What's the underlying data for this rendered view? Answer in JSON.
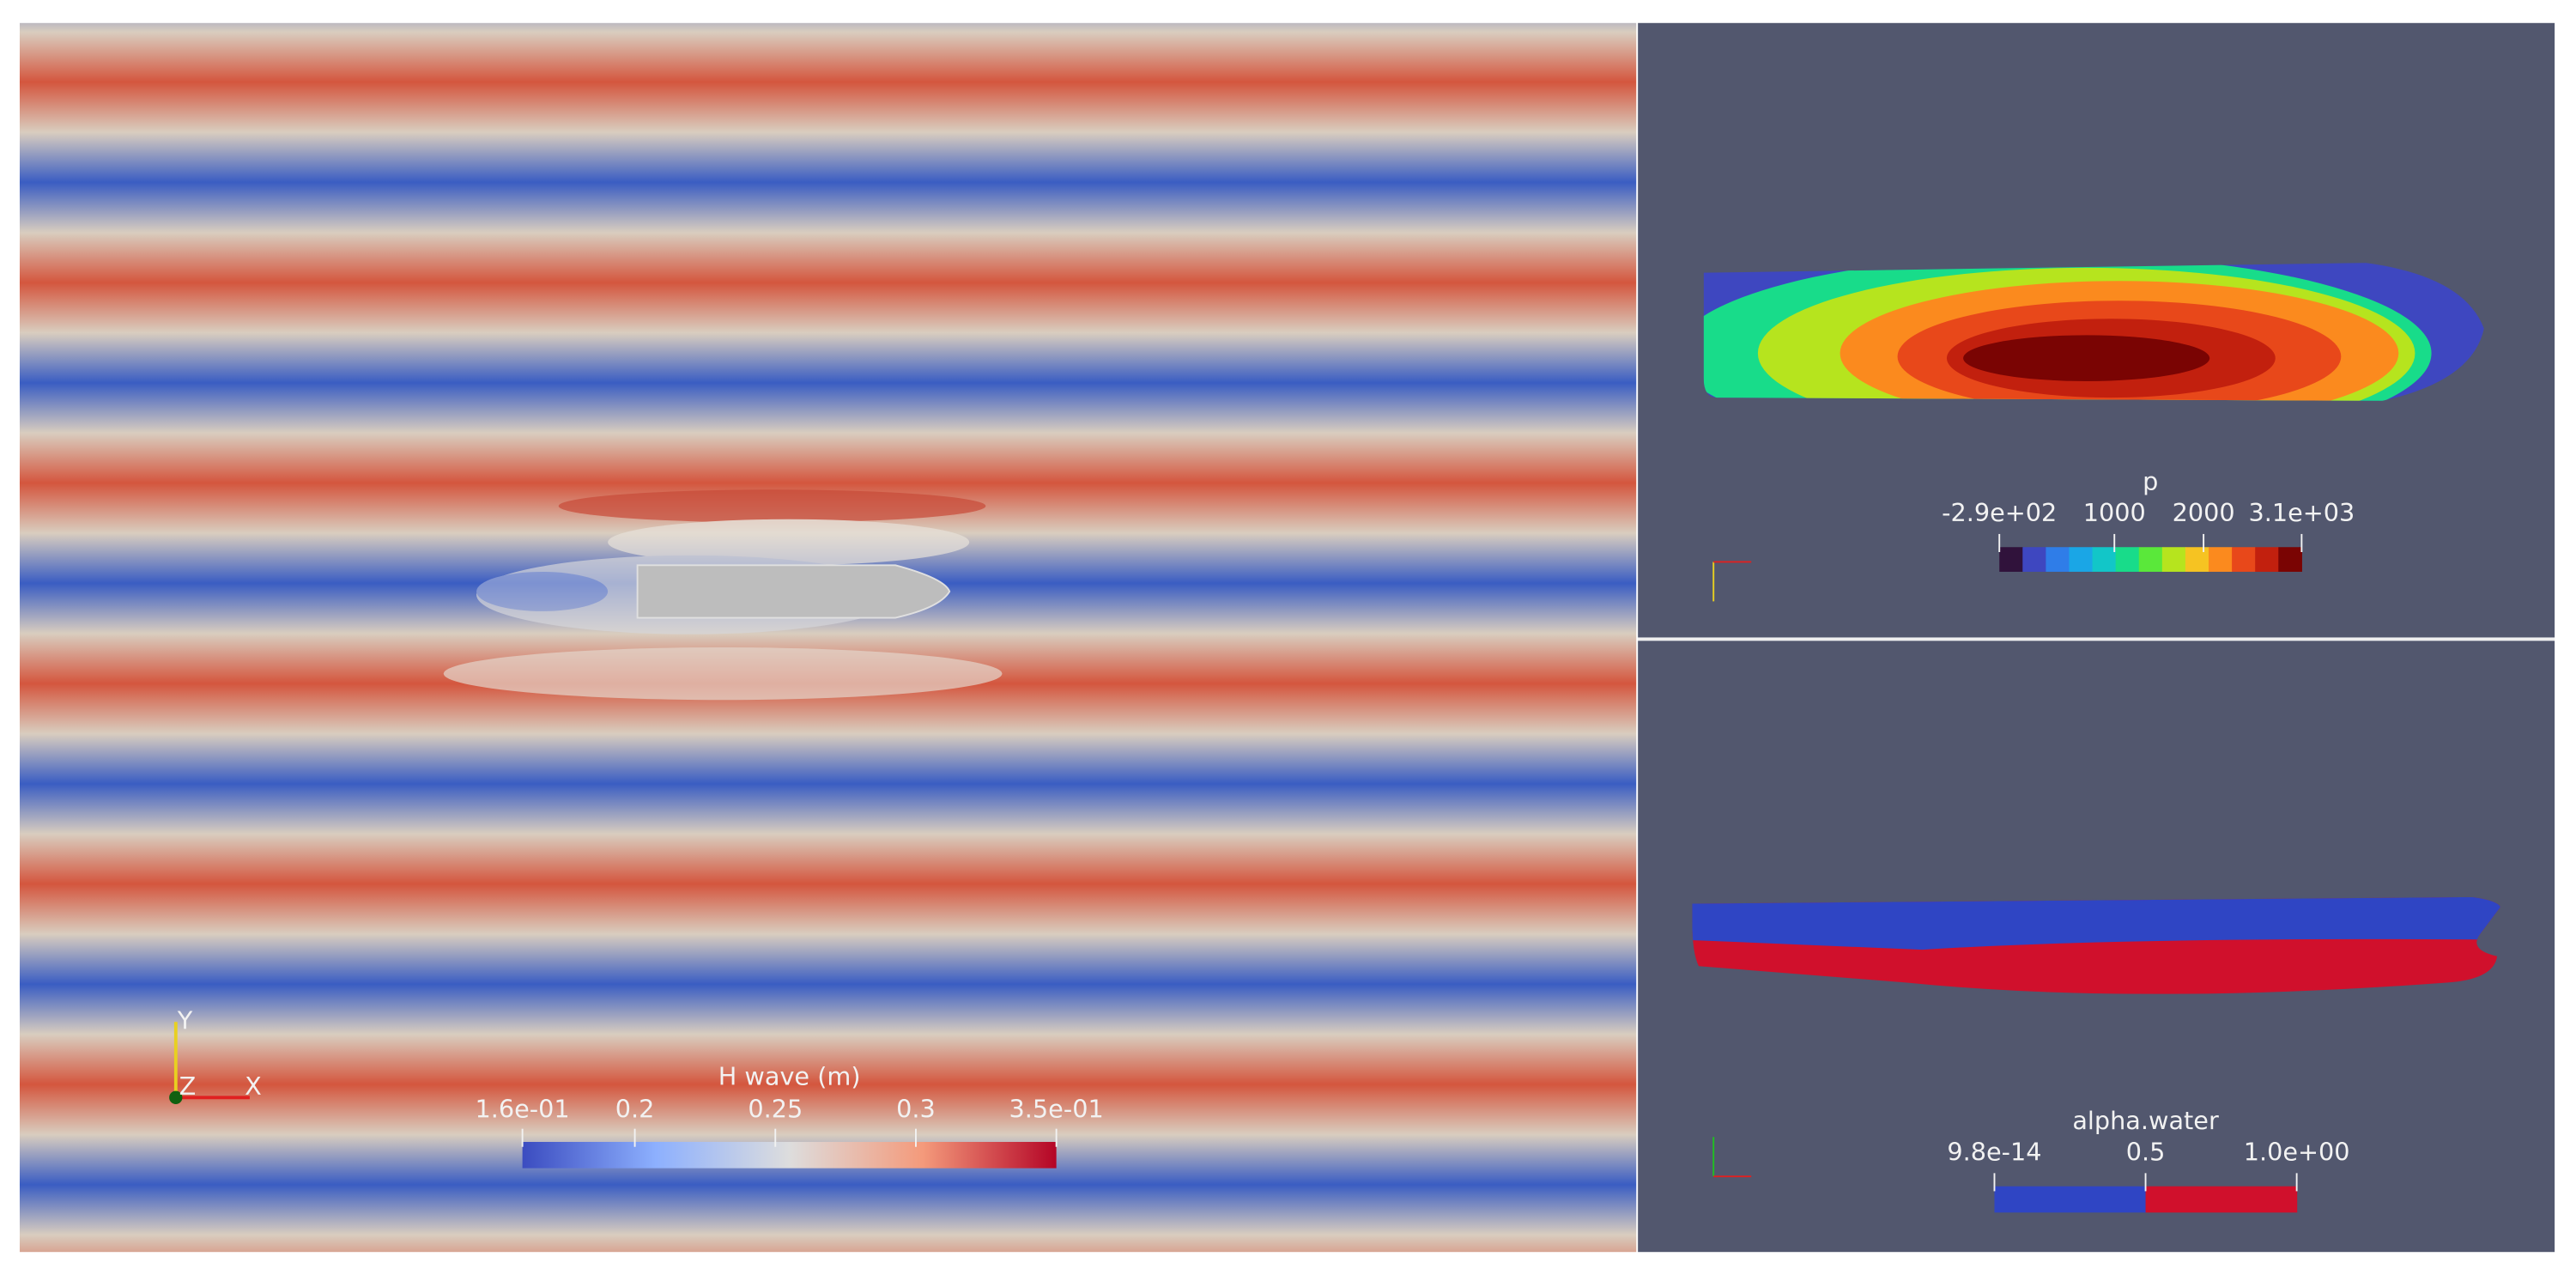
{
  "wave_view": {
    "colorbar": {
      "title": "H wave (m)",
      "ticks": [
        {
          "value": 0.16,
          "label": "1.6e-01"
        },
        0.2,
        0.25,
        0.3,
        {
          "value": 0.35,
          "label": "3.5e-01"
        }
      ],
      "mode": "gradient",
      "colors": [
        "#3b4cc0",
        "#8db0fe",
        "#dddddd",
        "#f49a7b",
        "#b40426"
      ]
    },
    "axes_labels": [
      "Y",
      "Z",
      "X"
    ]
  },
  "pressure_view": {
    "colorbar": {
      "title": "p",
      "ticks": [
        {
          "value": -290,
          "label": "-2.9e+02"
        },
        1000,
        2000,
        {
          "value": 3100,
          "label": "3.1e+03"
        }
      ],
      "mode": "discrete",
      "colors": [
        "#30123b",
        "#3e47c0",
        "#2f7de8",
        "#1aa6e6",
        "#12c6c8",
        "#18dc8a",
        "#5ae83a",
        "#b6e41e",
        "#f6c322",
        "#fb8a1e",
        "#e8481a",
        "#c2200e",
        "#7a0403"
      ]
    }
  },
  "alpha_view": {
    "colorbar": {
      "title": "alpha.water",
      "ticks": [
        {
          "value": 9.8e-14,
          "label": "9.8e-14"
        },
        0.5,
        {
          "value": 1,
          "label": "1.0e+00"
        }
      ],
      "mode": "discrete",
      "colors": [
        "#2f45c4",
        "#d0102c"
      ]
    }
  }
}
